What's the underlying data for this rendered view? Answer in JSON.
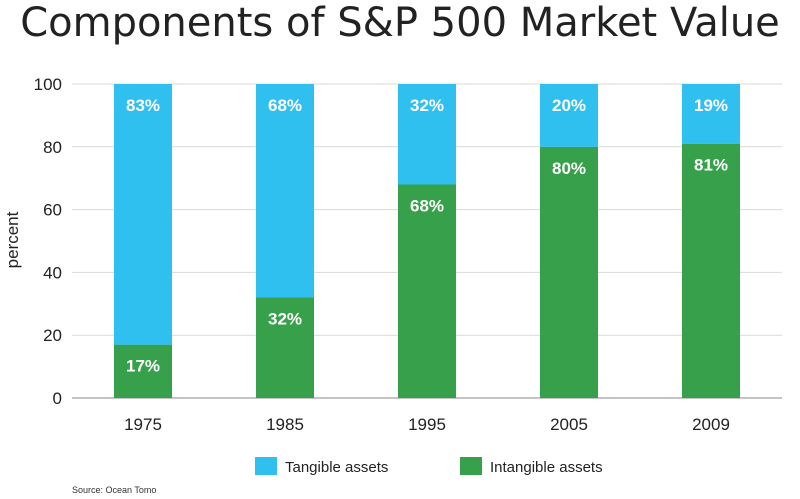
{
  "chart_data": {
    "type": "bar",
    "stacked": true,
    "title": "Components of S&P 500 Market Value",
    "ylabel": "percent",
    "xlabel": "",
    "categories": [
      "1975",
      "1985",
      "1995",
      "2005",
      "2009"
    ],
    "ylim": [
      0,
      100
    ],
    "yticks": [
      0,
      20,
      40,
      60,
      80,
      100
    ],
    "grid": true,
    "legend_position": "bottom",
    "series": [
      {
        "name": "Intangible assets",
        "values": [
          17,
          32,
          68,
          80,
          81
        ],
        "labels": [
          "17%",
          "32%",
          "68%",
          "80%",
          "81%"
        ],
        "color": "#36a04a"
      },
      {
        "name": "Tangible assets",
        "values": [
          83,
          68,
          32,
          20,
          19
        ],
        "labels": [
          "83%",
          "68%",
          "32%",
          "20%",
          "19%"
        ],
        "color": "#30c0f0"
      }
    ],
    "legend_order": [
      "Tangible assets",
      "Intangible assets"
    ],
    "source": "Source: Ocean Tomo"
  }
}
